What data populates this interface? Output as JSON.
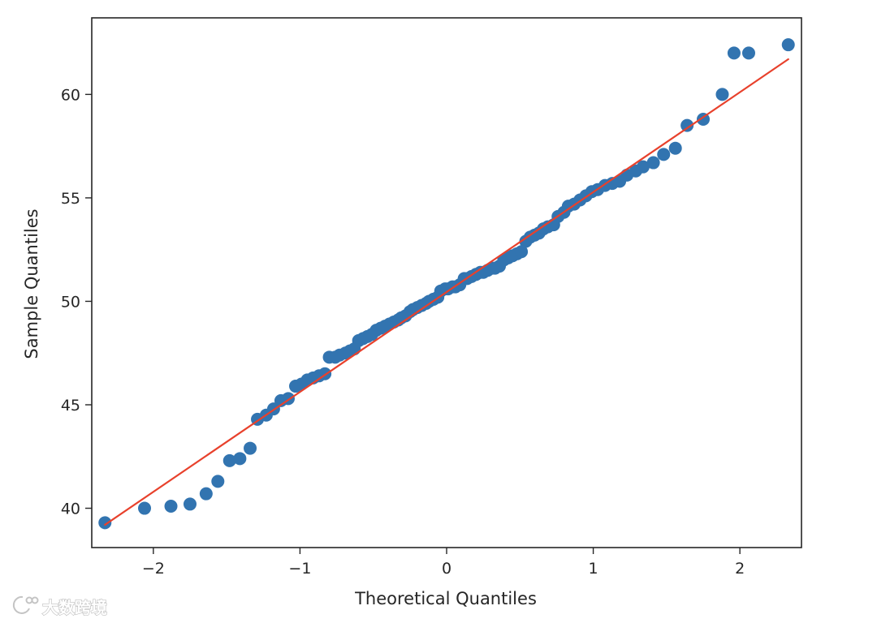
{
  "chart_data": {
    "type": "scatter",
    "xlabel": "Theoretical Quantiles",
    "ylabel": "Sample Quantiles",
    "xlim": [
      -2.42,
      2.42
    ],
    "ylim": [
      38.1,
      63.7
    ],
    "xticks": [
      -2,
      -1,
      0,
      1,
      2
    ],
    "xtick_labels": [
      "−2",
      "−1",
      "0",
      "1",
      "2"
    ],
    "yticks": [
      40,
      45,
      50,
      55,
      60
    ],
    "ytick_labels": [
      "40",
      "45",
      "50",
      "55",
      "60"
    ],
    "grid": false,
    "reference_line": {
      "x": [
        -2.33,
        2.33
      ],
      "y": [
        39.2,
        61.7
      ],
      "color": "#e8412c"
    },
    "points_color": "#3274b0",
    "points": [
      [
        -2.33,
        39.3
      ],
      [
        -2.06,
        40.0
      ],
      [
        -1.88,
        40.1
      ],
      [
        -1.75,
        40.2
      ],
      [
        -1.64,
        40.7
      ],
      [
        -1.56,
        41.3
      ],
      [
        -1.48,
        42.3
      ],
      [
        -1.41,
        42.4
      ],
      [
        -1.34,
        42.9
      ],
      [
        -1.29,
        44.3
      ],
      [
        -1.23,
        44.5
      ],
      [
        -1.18,
        44.8
      ],
      [
        -1.13,
        45.2
      ],
      [
        -1.08,
        45.3
      ],
      [
        -1.03,
        45.9
      ],
      [
        -0.99,
        46.0
      ],
      [
        -0.95,
        46.2
      ],
      [
        -0.91,
        46.3
      ],
      [
        -0.87,
        46.4
      ],
      [
        -0.83,
        46.5
      ],
      [
        -0.8,
        47.3
      ],
      [
        -0.76,
        47.3
      ],
      [
        -0.73,
        47.4
      ],
      [
        -0.69,
        47.5
      ],
      [
        -0.66,
        47.6
      ],
      [
        -0.63,
        47.7
      ],
      [
        -0.6,
        48.1
      ],
      [
        -0.57,
        48.2
      ],
      [
        -0.54,
        48.3
      ],
      [
        -0.51,
        48.4
      ],
      [
        -0.48,
        48.6
      ],
      [
        -0.45,
        48.7
      ],
      [
        -0.42,
        48.8
      ],
      [
        -0.39,
        48.9
      ],
      [
        -0.36,
        49.0
      ],
      [
        -0.33,
        49.1
      ],
      [
        -0.31,
        49.2
      ],
      [
        -0.28,
        49.3
      ],
      [
        -0.25,
        49.5
      ],
      [
        -0.23,
        49.6
      ],
      [
        -0.2,
        49.7
      ],
      [
        -0.17,
        49.8
      ],
      [
        -0.14,
        49.9
      ],
      [
        -0.12,
        50.0
      ],
      [
        -0.09,
        50.1
      ],
      [
        -0.06,
        50.2
      ],
      [
        -0.04,
        50.5
      ],
      [
        -0.01,
        50.6
      ],
      [
        0.01,
        50.6
      ],
      [
        0.04,
        50.7
      ],
      [
        0.06,
        50.7
      ],
      [
        0.09,
        50.8
      ],
      [
        0.12,
        51.1
      ],
      [
        0.14,
        51.1
      ],
      [
        0.17,
        51.2
      ],
      [
        0.2,
        51.3
      ],
      [
        0.23,
        51.4
      ],
      [
        0.25,
        51.4
      ],
      [
        0.28,
        51.5
      ],
      [
        0.31,
        51.6
      ],
      [
        0.33,
        51.6
      ],
      [
        0.36,
        51.7
      ],
      [
        0.39,
        52.0
      ],
      [
        0.42,
        52.1
      ],
      [
        0.45,
        52.2
      ],
      [
        0.48,
        52.3
      ],
      [
        0.51,
        52.4
      ],
      [
        0.54,
        52.9
      ],
      [
        0.57,
        53.1
      ],
      [
        0.6,
        53.2
      ],
      [
        0.63,
        53.3
      ],
      [
        0.66,
        53.5
      ],
      [
        0.69,
        53.6
      ],
      [
        0.73,
        53.7
      ],
      [
        0.76,
        54.1
      ],
      [
        0.8,
        54.3
      ],
      [
        0.83,
        54.6
      ],
      [
        0.87,
        54.7
      ],
      [
        0.91,
        54.9
      ],
      [
        0.95,
        55.1
      ],
      [
        0.99,
        55.3
      ],
      [
        1.03,
        55.4
      ],
      [
        1.08,
        55.6
      ],
      [
        1.13,
        55.7
      ],
      [
        1.18,
        55.8
      ],
      [
        1.23,
        56.1
      ],
      [
        1.29,
        56.3
      ],
      [
        1.34,
        56.5
      ],
      [
        1.41,
        56.7
      ],
      [
        1.48,
        57.1
      ],
      [
        1.56,
        57.4
      ],
      [
        1.64,
        58.5
      ],
      [
        1.75,
        58.8
      ],
      [
        1.88,
        60.0
      ],
      [
        2.06,
        62.0
      ],
      [
        2.33,
        62.4
      ],
      [
        1.96,
        62.0
      ]
    ]
  },
  "watermark": {
    "text": "大数跨境"
  }
}
